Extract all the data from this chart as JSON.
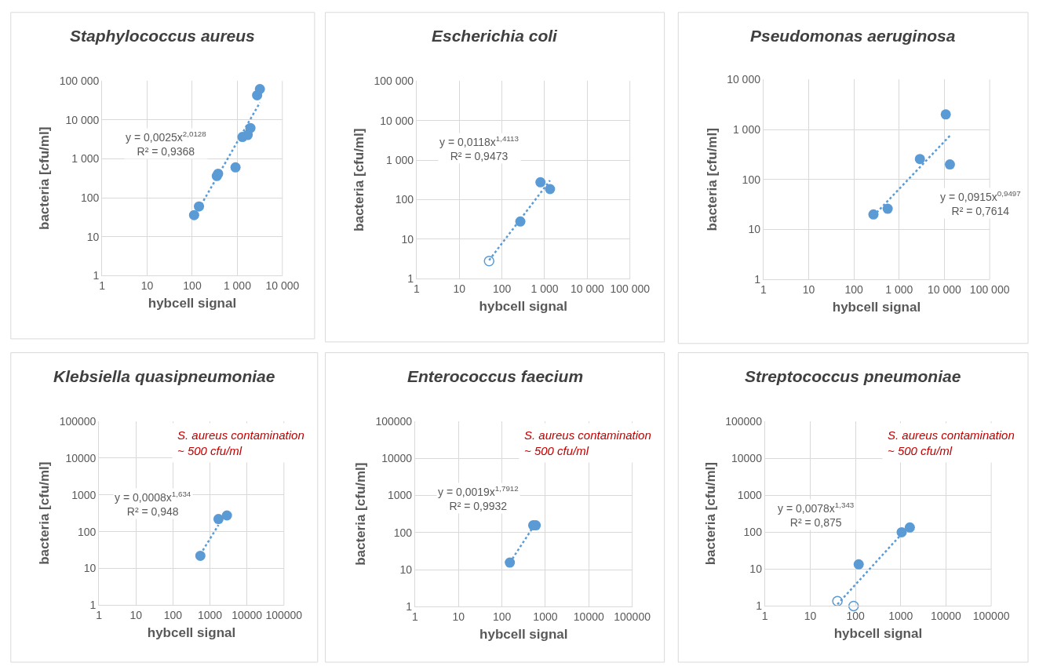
{
  "chart_data": [
    {
      "type": "scatter",
      "title": "Staphylococcus aureus",
      "xlabel": "hybcell signal",
      "ylabel": "bacteria [cfu/ml]",
      "grid": true,
      "legend": false,
      "log": "xy",
      "marker": "circle",
      "xlim": [
        1,
        10000
      ],
      "xticks": [
        1,
        10,
        100,
        {
          "value": 1000,
          "label": "1 000"
        },
        {
          "value": 10000,
          "label": "10 000"
        }
      ],
      "ylim": [
        1,
        100000
      ],
      "yticks": [
        1,
        10,
        100,
        {
          "value": 1000,
          "label": "1 000"
        },
        {
          "value": 10000,
          "label": "10 000"
        },
        {
          "value": 100000,
          "label": "100 000"
        }
      ],
      "series": [
        {
          "color": "#5b9bd5",
          "x": [
            110,
            141,
            351,
            375,
            912,
            1300,
            1700,
            1950,
            2750,
            3170
          ],
          "values": [
            36,
            60,
            363,
            415,
            605,
            3650,
            4100,
            6200,
            43000,
            62000
          ]
        },
        {
          "type": "line",
          "line_style": "dotted",
          "marker": "none",
          "color": "#5b9bd5",
          "x": [
            140,
            3170
          ],
          "values": [
            52,
            27900
          ]
        }
      ],
      "annotations": [
        "y = 0,0025x$^{2,0128}$\nR² = 0,9368"
      ]
    },
    {
      "type": "scatter",
      "title": "Escherichia coli",
      "xlabel": "hybcell signal",
      "ylabel": "bacteria [cfu/ml]",
      "grid": true,
      "legend": false,
      "log": "xy",
      "marker": "circle",
      "xlim": [
        1,
        100000
      ],
      "xticks": [
        1,
        10,
        100,
        {
          "value": 1000,
          "label": "1 000"
        },
        {
          "value": 10000,
          "label": "10 000"
        },
        {
          "value": 100000,
          "label": "100 000"
        }
      ],
      "ylim": [
        1,
        100000
      ],
      "yticks": [
        1,
        10,
        100,
        {
          "value": 1000,
          "label": "1 000"
        },
        {
          "value": 10000,
          "label": "10 000"
        },
        {
          "value": 100000,
          "label": "100 000"
        }
      ],
      "series": [
        {
          "color": "#5b9bd5",
          "x": [
            270,
            800,
            1340
          ],
          "values": [
            28,
            275,
            185
          ]
        },
        {
          "color": "#5b9bd5",
          "x": [
            50
          ],
          "values": [
            2.8
          ]
        },
        {
          "type": "line",
          "line_style": "dotted",
          "marker": "none",
          "color": "#5b9bd5",
          "x": [
            50,
            1340
          ],
          "values": [
            2.95,
            306
          ]
        }
      ],
      "annotations": [
        "y = 0,0118x$^{1,4113}$\nR² = 0,9473"
      ]
    },
    {
      "type": "scatter",
      "title": "Pseudomonas aeruginosa",
      "xlabel": "hybcell signal",
      "ylabel": "bacteria [cfu/ml]",
      "grid": true,
      "legend": false,
      "log": "xy",
      "marker": "circle",
      "xlim": [
        1,
        100000
      ],
      "xticks": [
        1,
        10,
        100,
        {
          "value": 1000,
          "label": "1 000"
        },
        {
          "value": 10000,
          "label": "10 000"
        },
        {
          "value": 100000,
          "label": "100 000"
        }
      ],
      "ylim": [
        1,
        10000
      ],
      "yticks": [
        1,
        10,
        100,
        {
          "value": 1000,
          "label": "1 000"
        },
        {
          "value": 10000,
          "label": "10 000"
        }
      ],
      "series": [
        {
          "color": "#5b9bd5",
          "x": [
            270,
            557,
            2870,
            10700,
            13200
          ],
          "values": [
            20,
            26,
            257,
            2000,
            200
          ]
        },
        {
          "type": "line",
          "line_style": "dotted",
          "marker": "none",
          "color": "#5b9bd5",
          "x": [
            270,
            13200
          ],
          "values": [
            18.7,
            749
          ]
        }
      ],
      "annotations": [
        "y = 0,0915x$^{0,9497}$\nR² = 0,7614"
      ]
    },
    {
      "type": "scatter",
      "title": "Klebsiella quasipneumoniae",
      "xlabel": "hybcell signal",
      "ylabel": "bacteria [cfu/ml]",
      "grid": true,
      "legend": false,
      "log": "xy",
      "marker": "circle",
      "xlim": [
        1,
        100000
      ],
      "xticks": [
        1,
        10,
        100,
        1000,
        10000,
        100000
      ],
      "ylim": [
        1,
        100000
      ],
      "yticks": [
        1,
        10,
        100,
        1000,
        10000,
        100000
      ],
      "series": [
        {
          "color": "#5b9bd5",
          "x": [
            550,
            1700,
            2880
          ],
          "values": [
            22,
            220,
            275
          ]
        },
        {
          "type": "line",
          "line_style": "dotted",
          "marker": "none",
          "color": "#5b9bd5",
          "x": [
            550,
            1700
          ],
          "values": [
            24,
            152
          ]
        }
      ],
      "annotations": [
        "y = 0,0008x$^{1,634}$\nR² = 0,948",
        "S. aureus contamination\n~ 500 cfu/ml"
      ]
    },
    {
      "type": "scatter",
      "title": "Enterococcus faecium",
      "xlabel": "hybcell signal",
      "ylabel": "bacteria [cfu/ml]",
      "grid": true,
      "legend": false,
      "log": "xy",
      "marker": "circle",
      "xlim": [
        1,
        100000
      ],
      "xticks": [
        1,
        10,
        100,
        1000,
        10000,
        100000
      ],
      "ylim": [
        1,
        100000
      ],
      "yticks": [
        1,
        10,
        100,
        1000,
        10000,
        100000
      ],
      "series": [
        {
          "color": "#5b9bd5",
          "x": [
            152,
            525,
            600
          ],
          "values": [
            15.5,
            157,
            157
          ]
        },
        {
          "type": "line",
          "line_style": "dotted",
          "marker": "none",
          "color": "#5b9bd5",
          "x": [
            152,
            600
          ],
          "values": [
            15.4,
            180
          ]
        }
      ],
      "annotations": [
        "y = 0,0019x$^{1,7912}$\nR² = 0,9932",
        "S. aureus contamination\n~ 500 cfu/ml"
      ]
    },
    {
      "type": "scatter",
      "title": "Streptococcus pneumoniae",
      "xlabel": "hybcell signal",
      "ylabel": "bacteria [cfu/ml]",
      "grid": true,
      "legend": false,
      "log": "xy",
      "marker": "circle",
      "xlim": [
        1,
        100000
      ],
      "xticks": [
        1,
        10,
        100,
        1000,
        10000,
        100000
      ],
      "ylim": [
        1,
        100000
      ],
      "yticks": [
        1,
        10,
        100,
        1000,
        10000,
        100000
      ],
      "series": [
        {
          "color": "#5b9bd5",
          "x": [
            118,
            1050,
            1590
          ],
          "values": [
            13.4,
            99,
            133
          ]
        },
        {
          "color": "#5b9bd5",
          "x": [
            40,
            91
          ],
          "values": [
            1.35,
            1
          ]
        },
        {
          "type": "line",
          "line_style": "dotted",
          "marker": "none",
          "color": "#5b9bd5",
          "x": [
            40,
            1050
          ],
          "values": [
            1.11,
            89
          ]
        }
      ],
      "annotations": [
        "y = 0,0078x$^{1,343}$\nR² = 0,875",
        "S. aureus contamination\n~ 500 cfu/ml"
      ]
    }
  ]
}
